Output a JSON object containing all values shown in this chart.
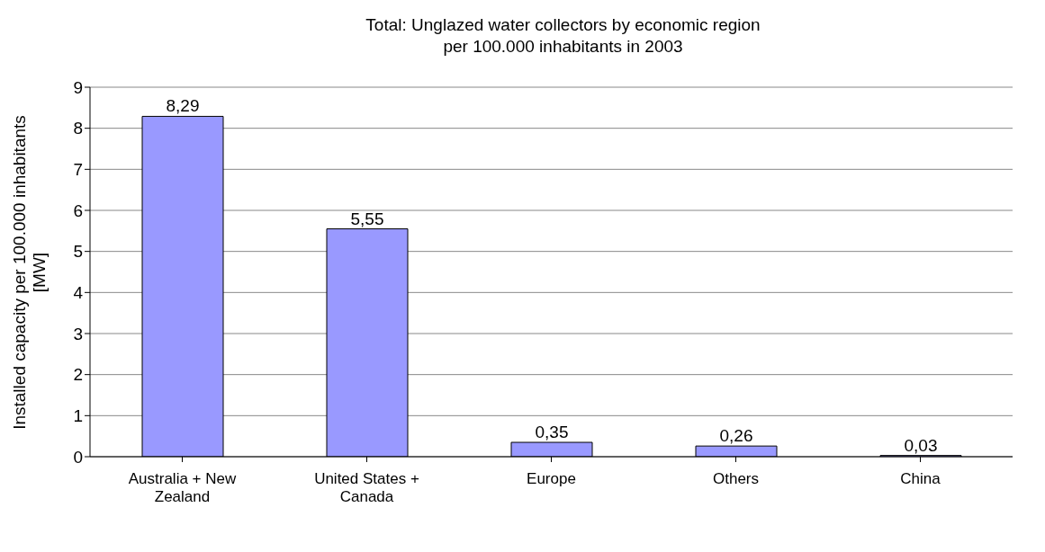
{
  "chart_data": {
    "type": "bar",
    "title": "Total: Unglazed water collectors by economic region\nper 100.000 inhabitants in 2003",
    "ylabel": "Installed capacity per 100.000 inhabitants\n[MW]",
    "categories": [
      "Australia + New Zealand",
      "United States + Canada",
      "Europe",
      "Others",
      "China"
    ],
    "values": [
      8.29,
      5.55,
      0.35,
      0.26,
      0.03
    ],
    "value_labels": [
      "8,29",
      "5,55",
      "0,35",
      "0,26",
      "0,03"
    ],
    "color": "#9999ff",
    "ylim": [
      0,
      9
    ],
    "yticks": [
      0,
      1,
      2,
      3,
      4,
      5,
      6,
      7,
      8,
      9
    ],
    "grid": "y"
  }
}
